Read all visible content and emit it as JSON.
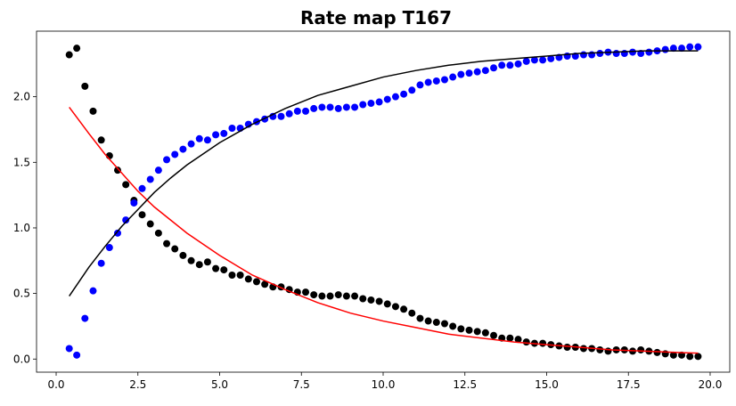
{
  "chart_data": {
    "type": "scatter",
    "title": "Rate map T167",
    "xlabel": "",
    "ylabel": "",
    "xlim": [
      -0.6,
      20.6
    ],
    "ylim": [
      -0.1,
      2.5
    ],
    "x_ticks": [
      0.0,
      2.5,
      5.0,
      7.5,
      10.0,
      12.5,
      15.0,
      17.5,
      20.0
    ],
    "x_tick_labels": [
      "0.0",
      "2.5",
      "5.0",
      "7.5",
      "10.0",
      "12.5",
      "15.0",
      "17.5",
      "20.0"
    ],
    "y_ticks": [
      0.0,
      0.5,
      1.0,
      1.5,
      2.0
    ],
    "y_tick_labels": [
      "0.0",
      "0.5",
      "1.0",
      "1.5",
      "2.0"
    ],
    "grid": false,
    "legend": "none",
    "series": [
      {
        "kind": "scatter",
        "color": "#000000",
        "points": [
          [
            0.4,
            2.32
          ],
          [
            0.63,
            2.37
          ],
          [
            0.88,
            2.08
          ],
          [
            1.13,
            1.89
          ],
          [
            1.38,
            1.67
          ],
          [
            1.63,
            1.55
          ],
          [
            1.88,
            1.44
          ],
          [
            2.13,
            1.33
          ],
          [
            2.38,
            1.21
          ],
          [
            2.63,
            1.1
          ],
          [
            2.88,
            1.03
          ],
          [
            3.13,
            0.96
          ],
          [
            3.38,
            0.88
          ],
          [
            3.63,
            0.84
          ],
          [
            3.88,
            0.79
          ],
          [
            4.13,
            0.75
          ],
          [
            4.38,
            0.72
          ],
          [
            4.63,
            0.74
          ],
          [
            4.88,
            0.69
          ],
          [
            5.13,
            0.68
          ],
          [
            5.38,
            0.64
          ],
          [
            5.63,
            0.64
          ],
          [
            5.88,
            0.61
          ],
          [
            6.13,
            0.59
          ],
          [
            6.38,
            0.57
          ],
          [
            6.63,
            0.55
          ],
          [
            6.88,
            0.55
          ],
          [
            7.13,
            0.53
          ],
          [
            7.38,
            0.51
          ],
          [
            7.63,
            0.51
          ],
          [
            7.88,
            0.49
          ],
          [
            8.13,
            0.48
          ],
          [
            8.38,
            0.48
          ],
          [
            8.63,
            0.49
          ],
          [
            8.88,
            0.48
          ],
          [
            9.13,
            0.48
          ],
          [
            9.38,
            0.46
          ],
          [
            9.63,
            0.45
          ],
          [
            9.88,
            0.44
          ],
          [
            10.13,
            0.42
          ],
          [
            10.38,
            0.4
          ],
          [
            10.63,
            0.38
          ],
          [
            10.88,
            0.35
          ],
          [
            11.13,
            0.31
          ],
          [
            11.38,
            0.29
          ],
          [
            11.63,
            0.28
          ],
          [
            11.88,
            0.27
          ],
          [
            12.13,
            0.25
          ],
          [
            12.38,
            0.23
          ],
          [
            12.63,
            0.22
          ],
          [
            12.88,
            0.21
          ],
          [
            13.13,
            0.2
          ],
          [
            13.38,
            0.18
          ],
          [
            13.63,
            0.16
          ],
          [
            13.88,
            0.16
          ],
          [
            14.13,
            0.15
          ],
          [
            14.38,
            0.13
          ],
          [
            14.63,
            0.12
          ],
          [
            14.88,
            0.12
          ],
          [
            15.13,
            0.11
          ],
          [
            15.38,
            0.1
          ],
          [
            15.63,
            0.09
          ],
          [
            15.88,
            0.09
          ],
          [
            16.13,
            0.08
          ],
          [
            16.38,
            0.08
          ],
          [
            16.63,
            0.07
          ],
          [
            16.88,
            0.06
          ],
          [
            17.13,
            0.07
          ],
          [
            17.38,
            0.07
          ],
          [
            17.63,
            0.06
          ],
          [
            17.88,
            0.07
          ],
          [
            18.13,
            0.06
          ],
          [
            18.38,
            0.05
          ],
          [
            18.63,
            0.04
          ],
          [
            18.88,
            0.03
          ],
          [
            19.13,
            0.03
          ],
          [
            19.38,
            0.02
          ],
          [
            19.63,
            0.02
          ]
        ]
      },
      {
        "kind": "scatter",
        "color": "#0000ff",
        "points": [
          [
            0.4,
            0.08
          ],
          [
            0.63,
            0.03
          ],
          [
            0.88,
            0.31
          ],
          [
            1.13,
            0.52
          ],
          [
            1.38,
            0.73
          ],
          [
            1.63,
            0.85
          ],
          [
            1.88,
            0.96
          ],
          [
            2.13,
            1.06
          ],
          [
            2.38,
            1.19
          ],
          [
            2.63,
            1.3
          ],
          [
            2.88,
            1.37
          ],
          [
            3.13,
            1.44
          ],
          [
            3.38,
            1.52
          ],
          [
            3.63,
            1.56
          ],
          [
            3.88,
            1.6
          ],
          [
            4.13,
            1.64
          ],
          [
            4.38,
            1.68
          ],
          [
            4.63,
            1.67
          ],
          [
            4.88,
            1.71
          ],
          [
            5.13,
            1.72
          ],
          [
            5.38,
            1.76
          ],
          [
            5.63,
            1.76
          ],
          [
            5.88,
            1.79
          ],
          [
            6.13,
            1.81
          ],
          [
            6.38,
            1.83
          ],
          [
            6.63,
            1.85
          ],
          [
            6.88,
            1.85
          ],
          [
            7.13,
            1.87
          ],
          [
            7.38,
            1.89
          ],
          [
            7.63,
            1.89
          ],
          [
            7.88,
            1.91
          ],
          [
            8.13,
            1.92
          ],
          [
            8.38,
            1.92
          ],
          [
            8.63,
            1.91
          ],
          [
            8.88,
            1.92
          ],
          [
            9.13,
            1.92
          ],
          [
            9.38,
            1.94
          ],
          [
            9.63,
            1.95
          ],
          [
            9.88,
            1.96
          ],
          [
            10.13,
            1.98
          ],
          [
            10.38,
            2.0
          ],
          [
            10.63,
            2.02
          ],
          [
            10.88,
            2.05
          ],
          [
            11.13,
            2.09
          ],
          [
            11.38,
            2.11
          ],
          [
            11.63,
            2.12
          ],
          [
            11.88,
            2.13
          ],
          [
            12.13,
            2.15
          ],
          [
            12.38,
            2.17
          ],
          [
            12.63,
            2.18
          ],
          [
            12.88,
            2.19
          ],
          [
            13.13,
            2.2
          ],
          [
            13.38,
            2.22
          ],
          [
            13.63,
            2.24
          ],
          [
            13.88,
            2.24
          ],
          [
            14.13,
            2.25
          ],
          [
            14.38,
            2.27
          ],
          [
            14.63,
            2.28
          ],
          [
            14.88,
            2.28
          ],
          [
            15.13,
            2.29
          ],
          [
            15.38,
            2.3
          ],
          [
            15.63,
            2.31
          ],
          [
            15.88,
            2.31
          ],
          [
            16.13,
            2.32
          ],
          [
            16.38,
            2.32
          ],
          [
            16.63,
            2.33
          ],
          [
            16.88,
            2.34
          ],
          [
            17.13,
            2.33
          ],
          [
            17.38,
            2.33
          ],
          [
            17.63,
            2.34
          ],
          [
            17.88,
            2.33
          ],
          [
            18.13,
            2.34
          ],
          [
            18.38,
            2.35
          ],
          [
            18.63,
            2.36
          ],
          [
            18.88,
            2.37
          ],
          [
            19.13,
            2.37
          ],
          [
            19.38,
            2.38
          ],
          [
            19.63,
            2.38
          ]
        ]
      },
      {
        "kind": "line",
        "color": "#ff0000",
        "points": [
          [
            0.4,
            1.92
          ],
          [
            1.0,
            1.72
          ],
          [
            1.5,
            1.56
          ],
          [
            2.0,
            1.42
          ],
          [
            2.5,
            1.28
          ],
          [
            3.0,
            1.16
          ],
          [
            3.5,
            1.06
          ],
          [
            4.0,
            0.96
          ],
          [
            5.0,
            0.79
          ],
          [
            6.0,
            0.64
          ],
          [
            7.0,
            0.53
          ],
          [
            8.0,
            0.43
          ],
          [
            9.0,
            0.35
          ],
          [
            10.0,
            0.29
          ],
          [
            11.0,
            0.24
          ],
          [
            12.0,
            0.19
          ],
          [
            13.0,
            0.16
          ],
          [
            14.0,
            0.13
          ],
          [
            15.0,
            0.11
          ],
          [
            16.0,
            0.09
          ],
          [
            17.0,
            0.07
          ],
          [
            18.0,
            0.06
          ],
          [
            19.0,
            0.05
          ],
          [
            19.63,
            0.045
          ]
        ]
      },
      {
        "kind": "line",
        "color": "#000000",
        "points": [
          [
            0.4,
            0.48
          ],
          [
            1.0,
            0.7
          ],
          [
            1.5,
            0.86
          ],
          [
            2.0,
            1.01
          ],
          [
            2.5,
            1.14
          ],
          [
            3.0,
            1.27
          ],
          [
            3.5,
            1.38
          ],
          [
            4.0,
            1.48
          ],
          [
            5.0,
            1.65
          ],
          [
            6.0,
            1.79
          ],
          [
            7.0,
            1.91
          ],
          [
            8.0,
            2.01
          ],
          [
            9.0,
            2.08
          ],
          [
            10.0,
            2.15
          ],
          [
            11.0,
            2.2
          ],
          [
            12.0,
            2.24
          ],
          [
            13.0,
            2.27
          ],
          [
            14.0,
            2.29
          ],
          [
            15.0,
            2.31
          ],
          [
            16.0,
            2.33
          ],
          [
            17.0,
            2.34
          ],
          [
            18.0,
            2.35
          ],
          [
            19.0,
            2.35
          ],
          [
            19.63,
            2.35
          ]
        ]
      }
    ]
  }
}
